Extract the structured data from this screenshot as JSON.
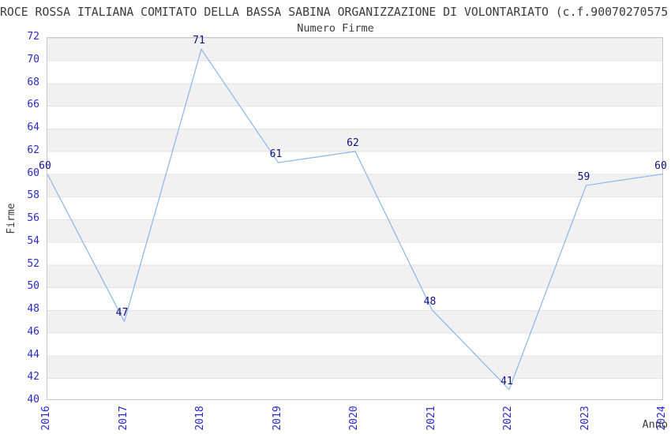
{
  "page": {
    "title": "ROCE ROSSA ITALIANA COMITATO DELLA BASSA SABINA ORGANIZZAZIONE DI VOLONTARIATO (c.f.90070270575",
    "subtitle": "Numero Firme"
  },
  "chart_data": {
    "type": "line",
    "title": "Numero Firme",
    "xlabel": "Anno",
    "ylabel": "Firme",
    "categories": [
      2016,
      2017,
      2018,
      2019,
      2020,
      2021,
      2022,
      2023,
      2024
    ],
    "values": [
      60,
      47,
      71,
      61,
      62,
      48,
      41,
      59,
      60
    ],
    "ylim": [
      40,
      72
    ],
    "ytick_step": 2,
    "yticks": [
      40,
      42,
      44,
      46,
      48,
      50,
      52,
      54,
      56,
      58,
      60,
      62,
      64,
      66,
      68,
      70,
      72
    ],
    "grid": "alternating horizontal bands, gray on 42-44, 46-48, 50-52, 54-56, 58-60, 62-64, 66-68, 70-72",
    "legend": "none",
    "point_labels_shown": true,
    "xtick_rotation_deg": 90,
    "colors": {
      "line": "#90bae9",
      "axis_tick_label": "#2929cc",
      "point_label": "#101080",
      "band_gray": "#f1f1f1",
      "band_white": "#ffffff",
      "grid_line": "#e3e3e3",
      "plot_border": "#c8c8c8",
      "text": "#3c3c3c"
    }
  }
}
